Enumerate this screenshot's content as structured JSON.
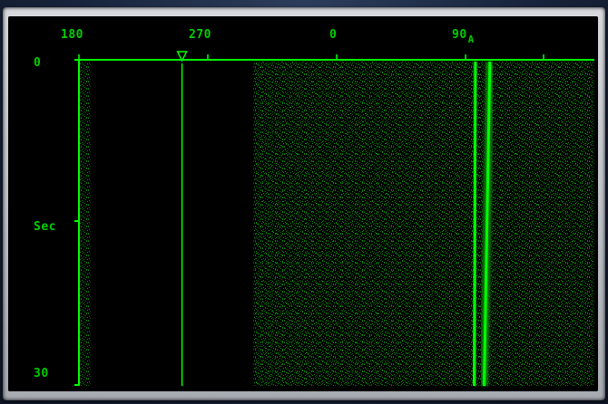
{
  "display": {
    "bearing_labels": [
      "180",
      "270",
      "0",
      "90"
    ],
    "bearing_suffix": "A",
    "time_labels": {
      "top": "0",
      "middle": "Sec",
      "bottom": "30"
    }
  },
  "chart_data": {
    "type": "heatmap",
    "x_axis": {
      "unit": "degrees bearing",
      "range_from": 180,
      "range_to": 140,
      "wraps_at": 360,
      "ticks": [
        180,
        270,
        0,
        90
      ]
    },
    "y_axis": {
      "unit": "seconds",
      "range": [
        0,
        30
      ]
    },
    "tracked_bearing_marker": 252,
    "blanked_sector": [
      188,
      302
    ],
    "contacts": [
      {
        "bearing_start": 97,
        "bearing_end": 96
      },
      {
        "bearing_start": 107,
        "bearing_end": 103
      }
    ],
    "colors": {
      "signal": "#00ff00",
      "noise": "#0c8a0c",
      "background": "#000000"
    }
  }
}
